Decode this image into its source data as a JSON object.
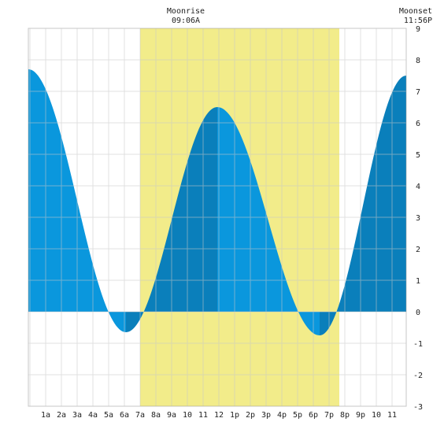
{
  "header": {
    "moonrise_label": "Moonrise",
    "moonrise_time": "09:06A",
    "moonset_label": "Moonset",
    "moonset_time": "11:56P"
  },
  "chart_data": {
    "type": "area",
    "title": "",
    "xlabel": "",
    "ylabel": "",
    "xlim": [
      -0.1,
      23.9
    ],
    "ylim": [
      -3,
      9
    ],
    "grid": true,
    "x_tick_labels": [
      "1a",
      "2a",
      "3a",
      "4a",
      "5a",
      "6a",
      "7a",
      "8a",
      "9a",
      "10",
      "11",
      "12",
      "1p",
      "2p",
      "3p",
      "4p",
      "5p",
      "6p",
      "7p",
      "8p",
      "9p",
      "10",
      "11"
    ],
    "y_ticks": [
      -3,
      -2,
      -1,
      0,
      1,
      2,
      3,
      4,
      5,
      6,
      7,
      8,
      9
    ],
    "daylight": {
      "start_hour": 7.0,
      "end_hour": 19.65
    },
    "extremes": [
      {
        "type": "high",
        "hour": -0.1,
        "height": 7.7
      },
      {
        "type": "low",
        "hour": 6.1,
        "height": -0.65
      },
      {
        "type": "high",
        "hour": 11.9,
        "height": 6.5
      },
      {
        "type": "low",
        "hour": 18.4,
        "height": -0.75
      },
      {
        "type": "high",
        "hour": 23.9,
        "height": 7.5
      }
    ],
    "colors": {
      "background": "#ffffff",
      "grid": "#c8c8c8",
      "daylight": "#f2ec8a",
      "falling_tide": "#0a97dd",
      "rising_tide": "#0a7fbb",
      "axis_text": "#222222"
    }
  }
}
